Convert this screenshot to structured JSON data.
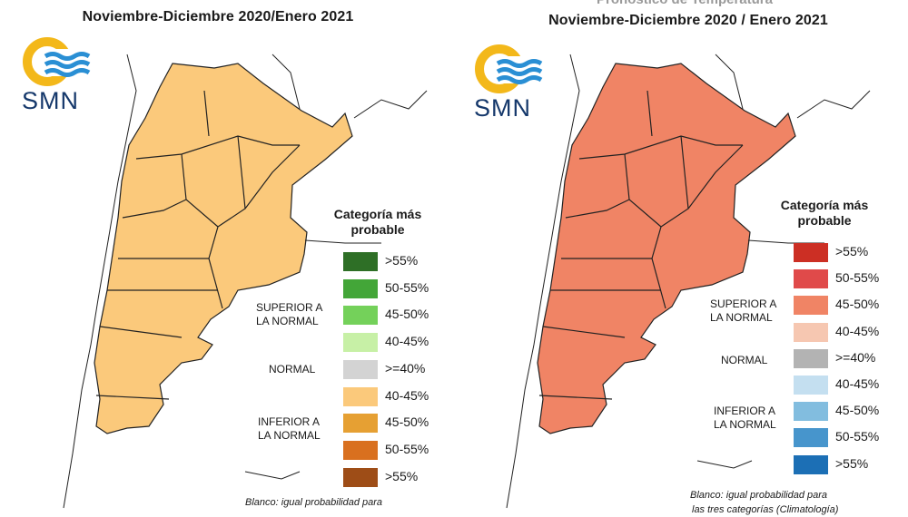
{
  "left_panel": {
    "title": "Noviembre-Diciembre 2020/Enero 2021",
    "logo_text": "SMN",
    "legend_title": "Categoría más probable",
    "legend_items": [
      {
        "label": ">55%",
        "color": "#2e6f26"
      },
      {
        "label": "50-55%",
        "color": "#43a638"
      },
      {
        "label": "45-50%",
        "color": "#74d15a"
      },
      {
        "label": "40-45%",
        "color": "#c7f0a6"
      },
      {
        "label": ">=40%",
        "color": "#d3d3d3"
      },
      {
        "label": "40-45%",
        "color": "#fbc97b"
      },
      {
        "label": "45-50%",
        "color": "#e6a033"
      },
      {
        "label": "50-55%",
        "color": "#d9701f"
      },
      {
        "label": ">55%",
        "color": "#9e4d17"
      }
    ],
    "group_labels": {
      "superior": "SUPERIOR A\nLA NORMAL",
      "normal": "NORMAL",
      "inferior": "INFERIOR A\nLA NORMAL"
    },
    "note": "Blanco: igual probabilidad para"
  },
  "right_panel": {
    "ghost_title": "Pronóstico de Temperatura",
    "title": "Noviembre-Diciembre 2020 / Enero 2021",
    "logo_text": "SMN",
    "legend_title": "Categoría más probable",
    "legend_items": [
      {
        "label": ">55%",
        "color": "#cc2f24"
      },
      {
        "label": "50-55%",
        "color": "#e04a4a"
      },
      {
        "label": "45-50%",
        "color": "#f08465"
      },
      {
        "label": "40-45%",
        "color": "#f6c7b1"
      },
      {
        "label": ">=40%",
        "color": "#b3b3b3"
      },
      {
        "label": "40-45%",
        "color": "#c4dff0"
      },
      {
        "label": "45-50%",
        "color": "#82bddf"
      },
      {
        "label": "50-55%",
        "color": "#4795cc"
      },
      {
        "label": ">55%",
        "color": "#1c6fb5"
      }
    ],
    "group_labels": {
      "superior": "SUPERIOR A\nLA NORMAL",
      "normal": "NORMAL",
      "inferior": "INFERIOR A\nLA NORMAL"
    },
    "note": "Blanco: igual probabilidad para",
    "note_cut": "las tres categorías (Climatología)"
  },
  "colors": {
    "logo_yellow": "#f3b81a",
    "logo_blue": "#2a8fd4",
    "logo_text": "#15386b",
    "border_line": "#222222"
  }
}
